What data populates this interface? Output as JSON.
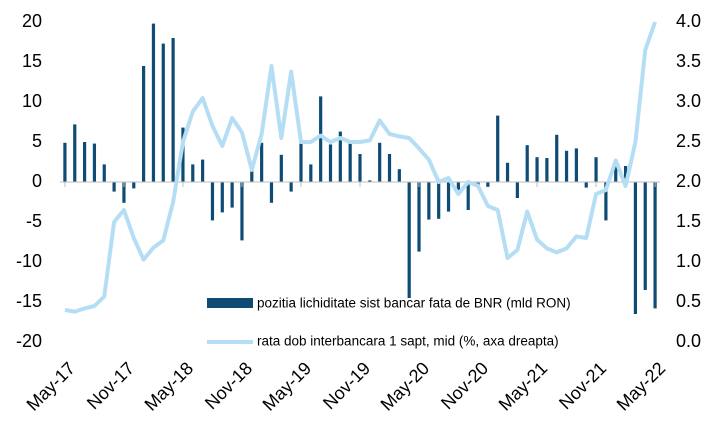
{
  "chart_data": {
    "type": "bar_line",
    "categories": [
      "May-17",
      null,
      null,
      null,
      null,
      null,
      "Nov-17",
      null,
      null,
      null,
      null,
      null,
      "May-18",
      null,
      null,
      null,
      null,
      null,
      "Nov-18",
      null,
      null,
      null,
      null,
      null,
      "May-19",
      null,
      null,
      null,
      null,
      null,
      "Nov-19",
      null,
      null,
      null,
      null,
      null,
      "May-20",
      null,
      null,
      null,
      null,
      null,
      "Nov-20",
      null,
      null,
      null,
      null,
      null,
      "May-21",
      null,
      null,
      null,
      null,
      null,
      "Nov-21",
      null,
      null,
      null,
      null,
      null,
      "May-22"
    ],
    "series": [
      {
        "name": "pozitia lichiditate sist bancar fata de BNR (mld RON)",
        "type": "bar",
        "color": "#0f4c75",
        "values": [
          4.9,
          7.2,
          5.0,
          4.8,
          2.2,
          -1.2,
          -2.6,
          -0.8,
          14.5,
          19.8,
          17.3,
          18.0,
          6.8,
          2.2,
          2.8,
          -4.8,
          -3.8,
          -3.2,
          -7.3,
          1.5,
          4.9,
          -2.6,
          3.4,
          -1.2,
          4.8,
          2.2,
          10.7,
          4.7,
          6.3,
          5.0,
          3.5,
          0.2,
          4.9,
          3.5,
          1.6,
          -14.5,
          -8.7,
          -4.7,
          -4.6,
          -3.7,
          -1.0,
          -3.5,
          -0.5,
          -0.6,
          8.3,
          2.4,
          -2.0,
          4.6,
          3.1,
          3.0,
          5.9,
          3.9,
          4.2,
          -0.7,
          3.1,
          -4.8,
          2.7,
          2.0,
          -16.5,
          -13.5,
          -15.8
        ]
      },
      {
        "name": "rata dob interbancara 1 sapt, mid (%, axa dreapta)",
        "type": "line",
        "axis": "y2",
        "color": "#b5def4",
        "values": [
          0.4,
          0.38,
          0.42,
          0.45,
          0.57,
          1.5,
          1.65,
          1.3,
          1.03,
          1.18,
          1.27,
          1.75,
          2.5,
          2.88,
          3.05,
          2.7,
          2.45,
          2.8,
          2.62,
          2.15,
          2.6,
          3.45,
          2.55,
          3.38,
          2.5,
          2.5,
          2.58,
          2.5,
          2.55,
          2.5,
          2.5,
          2.52,
          2.77,
          2.6,
          2.57,
          2.55,
          2.42,
          2.28,
          2.0,
          2.05,
          1.85,
          2.0,
          1.95,
          1.7,
          1.65,
          1.05,
          1.15,
          1.63,
          1.28,
          1.17,
          1.12,
          1.17,
          1.32,
          1.3,
          1.85,
          1.9,
          2.27,
          1.95,
          2.5,
          3.65,
          4.0
        ]
      }
    ],
    "ylim": [
      -20,
      20
    ],
    "yticks": [
      -20,
      -15,
      -10,
      -5,
      0,
      5,
      10,
      15,
      20
    ],
    "y2lim": [
      0,
      4
    ],
    "y2ticks": [
      {
        "value": 0,
        "label": "0.0"
      },
      {
        "value": 0.5,
        "label": "0.5"
      },
      {
        "value": 1,
        "label": "1.0"
      },
      {
        "value": 1.5,
        "label": "1.5"
      },
      {
        "value": 2,
        "label": "2.0"
      },
      {
        "value": 2.5,
        "label": "2.5"
      },
      {
        "value": 3,
        "label": "3.0"
      },
      {
        "value": 3.5,
        "label": "3.5"
      },
      {
        "value": 4,
        "label": "4.0"
      }
    ],
    "legend": "lower right",
    "grid": false
  }
}
